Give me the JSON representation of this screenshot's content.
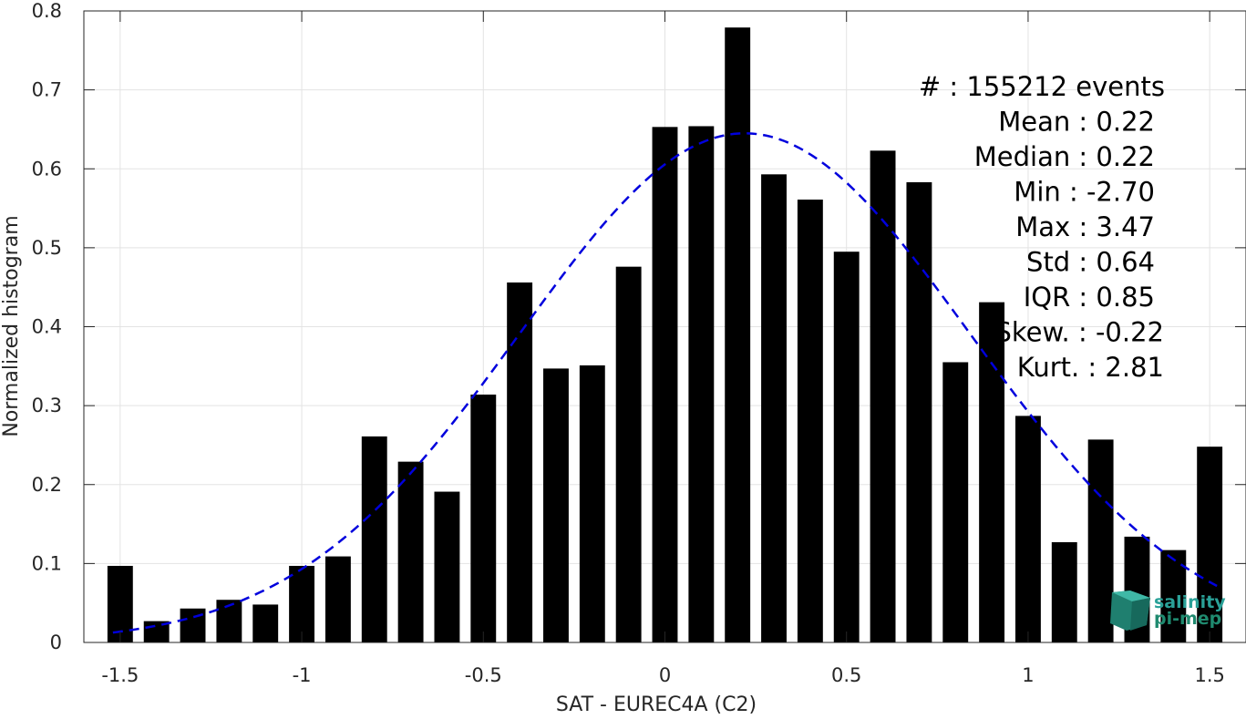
{
  "chart_data": {
    "type": "bar",
    "title": "",
    "xlabel": "SAT - EUREC4A (C2)",
    "ylabel": "Normalized histogram",
    "xlim": [
      -1.6,
      1.6
    ],
    "ylim": [
      0,
      0.8
    ],
    "grid": true,
    "x_ticks": [
      -1.5,
      -1,
      -0.5,
      0,
      0.5,
      1,
      1.5
    ],
    "x_tick_labels": [
      "-1.5",
      "-1",
      "-0.5",
      "0",
      "0.5",
      "1",
      "1.5"
    ],
    "y_ticks": [
      0,
      0.1,
      0.2,
      0.3,
      0.4,
      0.5,
      0.6,
      0.7,
      0.8
    ],
    "y_tick_labels": [
      "0",
      "0.1",
      "0.2",
      "0.3",
      "0.4",
      "0.5",
      "0.6",
      "0.7",
      "0.8"
    ],
    "bar_width": 0.07,
    "bar_color": "#000000",
    "series": [
      {
        "x": [
          -1.5,
          -1.4,
          -1.3,
          -1.2,
          -1.1,
          -1.0,
          -0.9,
          -0.8,
          -0.7,
          -0.6,
          -0.5,
          -0.4,
          -0.3,
          -0.2,
          -0.1,
          0.0,
          0.1,
          0.2,
          0.3,
          0.4,
          0.5,
          0.6,
          0.7,
          0.8,
          0.9,
          1.0,
          1.1,
          1.2,
          1.3,
          1.4,
          1.5
        ],
        "values": [
          0.097,
          0.027,
          0.043,
          0.054,
          0.048,
          0.097,
          0.109,
          0.261,
          0.229,
          0.191,
          0.314,
          0.456,
          0.347,
          0.351,
          0.476,
          0.653,
          0.654,
          0.779,
          0.593,
          0.561,
          0.495,
          0.623,
          0.583,
          0.355,
          0.431,
          0.287,
          0.127,
          0.257,
          0.134,
          0.117,
          0.248
        ]
      }
    ],
    "fit_curve": {
      "style": "dashed",
      "color": "#0000dd",
      "mean": 0.22,
      "std": 0.62,
      "amplitude": 0.645,
      "x_range": [
        -1.52,
        1.52
      ]
    },
    "stats_lines": [
      "#  : 155212 events",
      "Mean : 0.22",
      "Median : 0.22",
      "Min : -2.70",
      "Max : 3.47",
      "Std : 0.64",
      "IQR : 0.85",
      "Skew. : -0.22",
      "Kurt. : 2.81"
    ]
  },
  "logo": {
    "line1": "salinity",
    "line2": "pi-mep",
    "color": "#2aa198"
  }
}
